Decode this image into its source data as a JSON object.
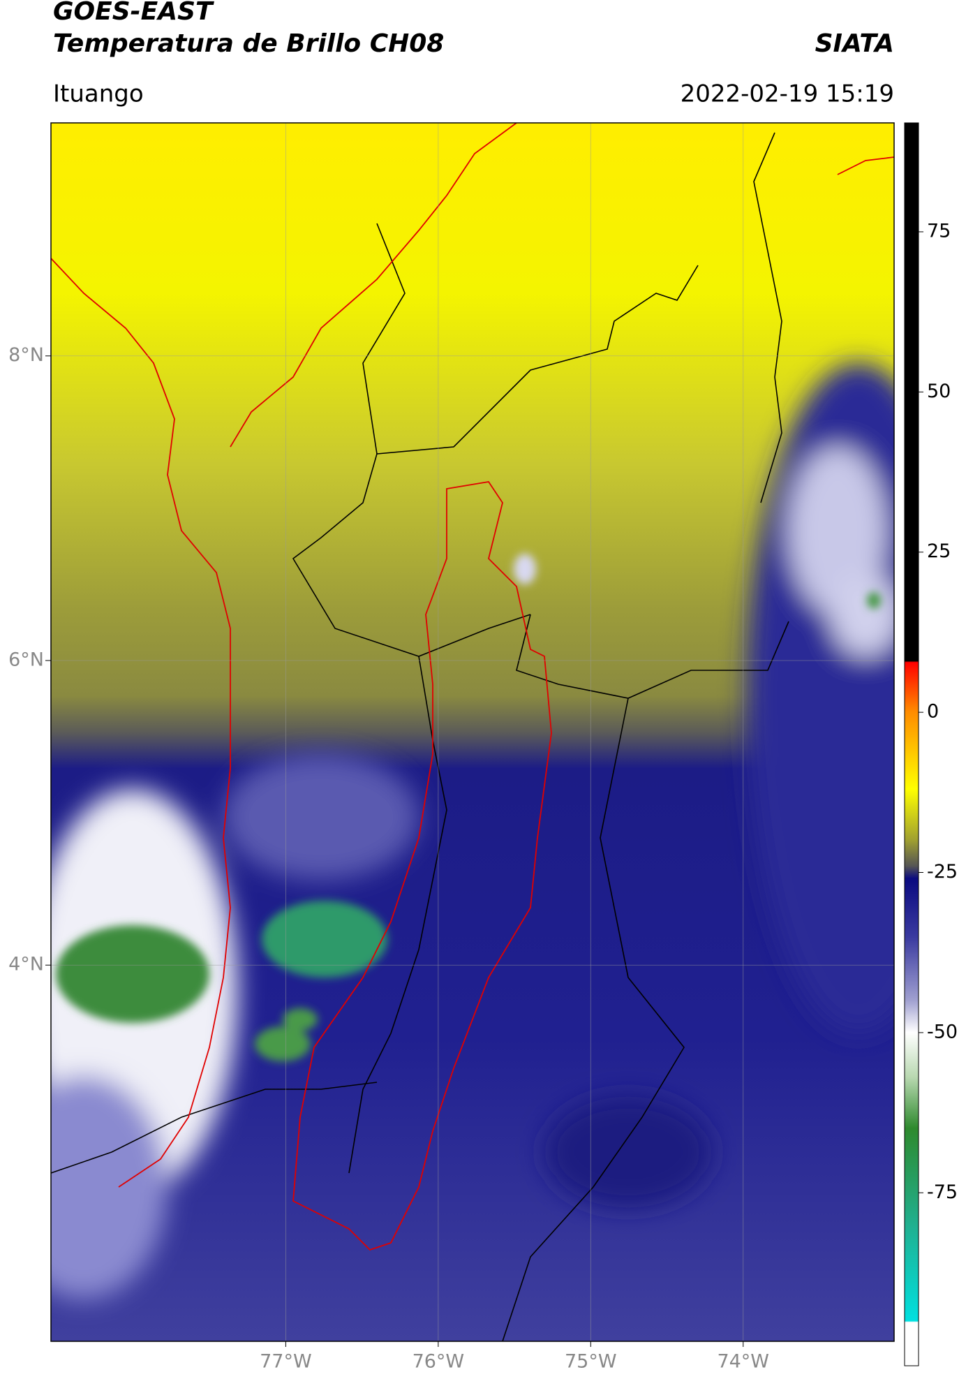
{
  "header": {
    "title": "GOES-EAST",
    "subtitle": "Temperatura de Brillo CH08",
    "source": "SIATA",
    "location": "Ituango",
    "datetime": "2022-02-19 15:19"
  },
  "map": {
    "xlim": [
      -78.54,
      -73.01
    ],
    "ylim": [
      1.53,
      9.53
    ],
    "xticks": [
      {
        "value": -77,
        "label": "77°W"
      },
      {
        "value": -76,
        "label": "76°W"
      },
      {
        "value": -75,
        "label": "75°W"
      },
      {
        "value": -74,
        "label": "74°W"
      }
    ],
    "yticks": [
      {
        "value": 8,
        "label": "8°N"
      },
      {
        "value": 6,
        "label": "6°N"
      },
      {
        "value": 4,
        "label": "4°N"
      }
    ]
  },
  "colorbar": {
    "lim": [
      -102,
      92
    ],
    "ticks": [
      75,
      50,
      25,
      0,
      -25,
      -50,
      -75
    ]
  }
}
